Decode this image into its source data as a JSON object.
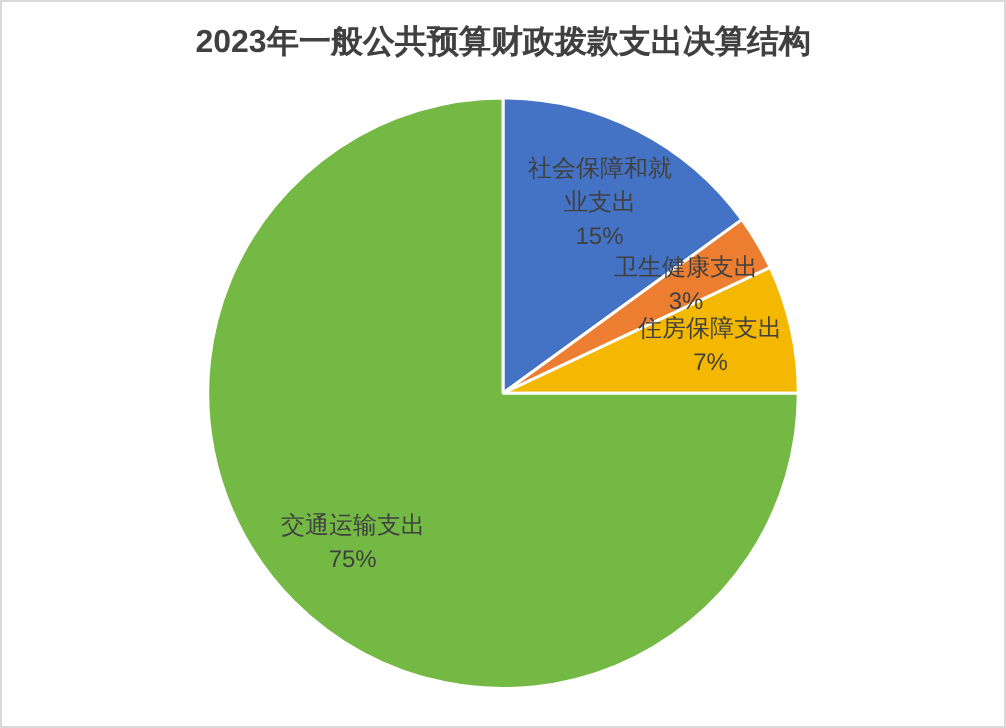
{
  "chart_data": {
    "type": "pie",
    "title": "2023年一般公共预算财政拨款支出决算结构",
    "categories": [
      "社会保障和就业支出",
      "卫生健康支出",
      "住房保障支出",
      "交通运输支出"
    ],
    "values": [
      15,
      3,
      7,
      75
    ],
    "colors": [
      "#4472c4",
      "#ed7d31",
      "#f5b800",
      "#74b944"
    ],
    "value_labels": [
      "15%",
      "3%",
      "7%",
      "75%"
    ],
    "legend": false
  }
}
